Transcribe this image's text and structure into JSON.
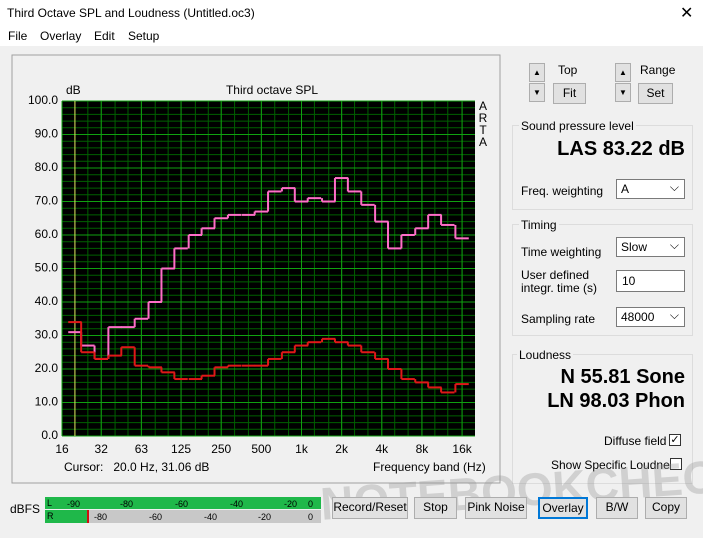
{
  "window": {
    "title": "Third Octave SPL and Loudness (Untitled.oc3)",
    "menu": [
      "File",
      "Overlay",
      "Edit",
      "Setup"
    ]
  },
  "chart_data": {
    "type": "line",
    "title": "Third octave SPL",
    "y_label": "dB",
    "x_label": "Frequency band (Hz)",
    "side_label": [
      "A",
      "R",
      "T",
      "A"
    ],
    "cursor": "Cursor:   20.0 Hz, 31.06 dB",
    "x": [
      20,
      25,
      31.5,
      40,
      50,
      63,
      80,
      100,
      125,
      160,
      200,
      250,
      315,
      400,
      500,
      630,
      800,
      1000,
      1250,
      1600,
      2000,
      2500,
      3150,
      4000,
      5000,
      6300,
      8000,
      10000,
      12500,
      16000
    ],
    "series": [
      {
        "color": "#ff6ec7",
        "values": [
          31,
          27,
          23,
          32.5,
          32.5,
          35,
          40,
          50,
          56,
          60,
          62,
          65,
          66,
          66,
          67,
          73,
          74,
          70,
          71,
          70,
          77,
          73,
          69,
          64,
          56,
          60,
          62,
          66,
          63,
          59
        ]
      },
      {
        "color": "#e01818",
        "values": [
          34,
          25,
          23,
          24,
          26.5,
          21,
          20.5,
          19,
          17,
          17,
          18,
          20.5,
          21,
          21,
          21,
          23,
          25,
          27,
          28,
          29,
          28,
          27,
          25,
          23,
          20,
          17,
          16,
          14.5,
          13,
          15.5
        ]
      }
    ],
    "xscale": "log",
    "xlim": [
      16,
      20000
    ],
    "xticks": [
      16,
      {
        "value": 31.5,
        "label": "32"
      },
      63,
      125,
      250,
      500,
      {
        "value": 1000,
        "label": "1k"
      },
      {
        "value": 2000,
        "label": "2k"
      },
      {
        "value": 4000,
        "label": "4k"
      },
      {
        "value": 8000,
        "label": "8k"
      },
      {
        "value": 16000,
        "label": "16k"
      }
    ],
    "ylim": [
      0,
      100
    ],
    "yticks": [
      {
        "value": 0,
        "label": "0.0"
      },
      {
        "value": 10,
        "label": "10.0"
      },
      {
        "value": 20,
        "label": "20.0"
      },
      {
        "value": 30,
        "label": "30.0"
      },
      {
        "value": 40,
        "label": "40.0"
      },
      {
        "value": 50,
        "label": "50.0"
      },
      {
        "value": 60,
        "label": "60.0"
      },
      {
        "value": 70,
        "label": "70.0"
      },
      {
        "value": 80,
        "label": "80.0"
      },
      {
        "value": 90,
        "label": "90.0"
      },
      {
        "value": 100,
        "label": "100.0"
      }
    ],
    "grid": true,
    "cursor_x": 20
  },
  "controls": {
    "top": "Top",
    "fit": "Fit",
    "range": "Range",
    "set": "Set"
  },
  "spl": {
    "heading": "Sound pressure level",
    "reading": "LAS 83.22 dB",
    "weighting_label": "Freq. weighting",
    "weighting": "A"
  },
  "timing": {
    "heading": "Timing",
    "time_weighting_label": "Time weighting",
    "time_weighting": "Slow",
    "integr_label": [
      "User defined",
      "integr. time (s)"
    ],
    "integr": "10",
    "rate_label": "Sampling rate",
    "rate": "48000"
  },
  "loudness": {
    "heading": "Loudness",
    "n": "N 55.81 Sone",
    "ln": "LN 98.03 Phon",
    "diffuse": "Diffuse field",
    "specific": "Show Specific Loudness"
  },
  "meter": {
    "label": "dBFS",
    "l": "L",
    "r": "R",
    "l_ticks": [
      "-90",
      "-80",
      "-60",
      "-40",
      "-20",
      "0"
    ],
    "r_ticks": [
      "-80",
      "-60",
      "-40",
      "-20",
      "0"
    ]
  },
  "buttons": [
    "Record/Reset",
    "Stop",
    "Pink Noise",
    "Overlay",
    "B/W",
    "Copy"
  ],
  "watermark": "NOTEBOOKCHECK"
}
